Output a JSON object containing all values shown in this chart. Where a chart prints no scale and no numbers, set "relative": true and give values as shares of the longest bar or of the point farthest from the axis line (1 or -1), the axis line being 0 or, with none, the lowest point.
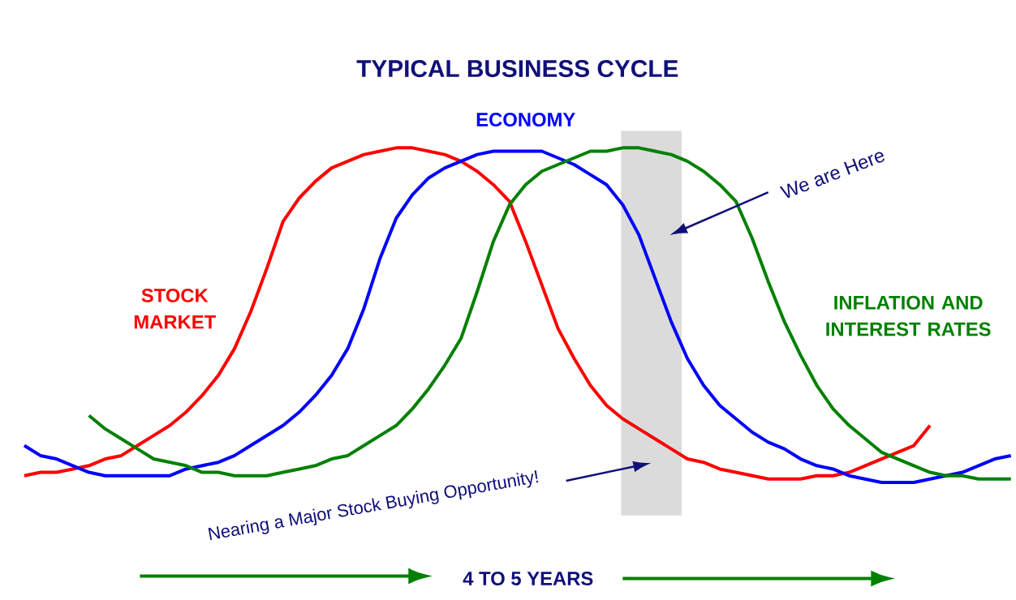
{
  "chart_data": {
    "type": "line",
    "title": "TYPICAL BUSINESS CYCLE",
    "relative": true,
    "categories": [
      null,
      null,
      null,
      null,
      null,
      null,
      null,
      null,
      null,
      null,
      null,
      null,
      null,
      null,
      null,
      null,
      null,
      null,
      null,
      null,
      null,
      null,
      null,
      null,
      null,
      null,
      null,
      null,
      null,
      null,
      null,
      null,
      null,
      null,
      null,
      null,
      null,
      null,
      null,
      null,
      null,
      null,
      null,
      null,
      null,
      null,
      null,
      null,
      null,
      null,
      null,
      null,
      null,
      null,
      null,
      null,
      null,
      null,
      null,
      null,
      null,
      null
    ],
    "series": [
      {
        "name": "STOCK MARKET",
        "color": "#ff0000",
        "values": [
          0.02,
          0.03,
          0.03,
          0.04,
          0.05,
          0.07,
          0.08,
          0.11,
          0.14,
          0.17,
          0.21,
          0.26,
          0.32,
          0.4,
          0.51,
          0.64,
          0.78,
          0.85,
          0.9,
          0.94,
          0.96,
          0.98,
          0.99,
          1.0,
          1.0,
          0.99,
          0.98,
          0.96,
          0.93,
          0.89,
          0.84,
          0.72,
          0.59,
          0.46,
          0.37,
          0.29,
          0.23,
          0.19,
          0.16,
          0.13,
          0.1,
          0.07,
          0.06,
          0.04,
          0.03,
          0.02,
          0.01,
          0.01,
          0.01,
          0.02,
          0.02,
          0.03,
          0.05,
          0.07,
          0.09,
          0.11,
          0.17,
          null,
          null,
          null,
          null,
          null
        ]
      },
      {
        "name": "ECONOMY",
        "color": "#0000ff",
        "values": [
          0.11,
          0.08,
          0.07,
          0.05,
          0.03,
          0.02,
          0.02,
          0.02,
          0.02,
          0.02,
          0.04,
          0.05,
          0.06,
          0.08,
          0.11,
          0.14,
          0.17,
          0.21,
          0.26,
          0.32,
          0.4,
          0.52,
          0.67,
          0.79,
          0.86,
          0.91,
          0.94,
          0.96,
          0.98,
          0.99,
          0.99,
          0.99,
          0.99,
          0.97,
          0.95,
          0.92,
          0.89,
          0.83,
          0.74,
          0.61,
          0.48,
          0.37,
          0.29,
          0.23,
          0.19,
          0.15,
          0.12,
          0.1,
          0.07,
          0.05,
          0.04,
          0.02,
          0.01,
          0.0,
          0.0,
          0.0,
          0.01,
          0.02,
          0.03,
          0.05,
          0.07,
          0.08
        ]
      },
      {
        "name": "INFLATION AND INTEREST RATES",
        "color": "#008000",
        "values": [
          null,
          null,
          null,
          null,
          0.2,
          0.16,
          0.13,
          0.1,
          0.07,
          0.06,
          0.05,
          0.03,
          0.03,
          0.02,
          0.02,
          0.02,
          0.03,
          0.04,
          0.05,
          0.07,
          0.08,
          0.11,
          0.14,
          0.17,
          0.22,
          0.28,
          0.35,
          0.43,
          0.57,
          0.72,
          0.83,
          0.89,
          0.93,
          0.95,
          0.97,
          0.99,
          0.99,
          1.0,
          1.0,
          0.99,
          0.98,
          0.96,
          0.93,
          0.89,
          0.84,
          0.73,
          0.6,
          0.48,
          0.38,
          0.29,
          0.22,
          0.17,
          0.13,
          0.09,
          0.07,
          0.05,
          0.03,
          0.02,
          0.02,
          0.01,
          0.01,
          0.01
        ]
      }
    ],
    "annotations": [
      "We are Here",
      "Nearing a Major Stock Buying Opportunity!",
      "4 TO 5 YEARS"
    ]
  }
}
